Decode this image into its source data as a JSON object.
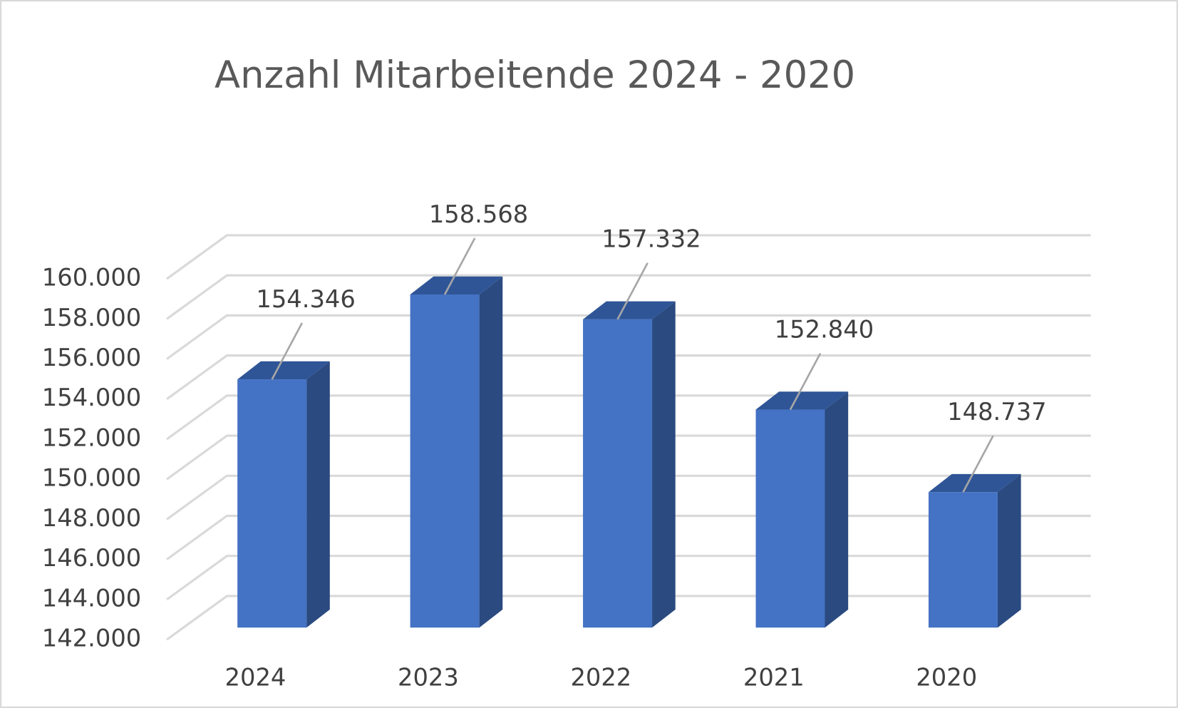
{
  "chart_data": {
    "type": "bar3d",
    "title": "Anzahl Mitarbeitende 2024 - 2020",
    "categories": [
      "2024",
      "2023",
      "2022",
      "2021",
      "2020"
    ],
    "values": [
      154346,
      158568,
      157332,
      152840,
      148737
    ],
    "value_labels": [
      "154.346",
      "158.568",
      "157.332",
      "152.840",
      "148.737"
    ],
    "color": "#4472c4",
    "ylim": [
      142000,
      160000
    ],
    "yticks": [
      {
        "value": 142000,
        "label": "142.000"
      },
      {
        "value": 144000,
        "label": "144.000"
      },
      {
        "value": 146000,
        "label": "146.000"
      },
      {
        "value": 148000,
        "label": "148.000"
      },
      {
        "value": 150000,
        "label": "150.000"
      },
      {
        "value": 152000,
        "label": "152.000"
      },
      {
        "value": 154000,
        "label": "154.000"
      },
      {
        "value": 156000,
        "label": "156.000"
      },
      {
        "value": 158000,
        "label": "158.000"
      },
      {
        "value": 160000,
        "label": "160.000"
      }
    ],
    "grid": true
  }
}
